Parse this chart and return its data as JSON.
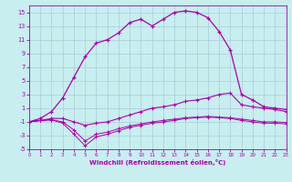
{
  "x": [
    0,
    1,
    2,
    3,
    4,
    5,
    6,
    7,
    8,
    9,
    10,
    11,
    12,
    13,
    14,
    15,
    16,
    17,
    18,
    19,
    20,
    21,
    22,
    23
  ],
  "line1": [
    -1,
    -0.5,
    0.5,
    2.5,
    5.5,
    8.5,
    10.5,
    11,
    12,
    13.5,
    14,
    13,
    14,
    15,
    15.2,
    15,
    14.2,
    12.2,
    9.5,
    3.0,
    2.2,
    1.2,
    1.0,
    0.8
  ],
  "line2": [
    -1,
    -0.8,
    -0.5,
    -0.5,
    -1.0,
    -1.5,
    -1.2,
    -1.0,
    -0.5,
    0.0,
    0.5,
    1.0,
    1.2,
    1.5,
    2.0,
    2.2,
    2.5,
    3.0,
    3.2,
    1.5,
    1.2,
    1.0,
    0.8,
    0.5
  ],
  "line3": [
    -1,
    -0.8,
    -0.7,
    -1.2,
    -2.8,
    -4.5,
    -3.2,
    -2.8,
    -2.3,
    -1.8,
    -1.5,
    -1.2,
    -1.0,
    -0.8,
    -0.5,
    -0.4,
    -0.3,
    -0.4,
    -0.5,
    -0.8,
    -1.0,
    -1.2,
    -1.2,
    -1.3
  ],
  "line4": [
    -1,
    -0.8,
    -0.7,
    -1.0,
    -2.2,
    -3.8,
    -2.8,
    -2.5,
    -2.0,
    -1.6,
    -1.3,
    -1.0,
    -0.8,
    -0.6,
    -0.4,
    -0.3,
    -0.2,
    -0.3,
    -0.4,
    -0.6,
    -0.8,
    -1.0,
    -1.0,
    -1.1
  ],
  "bg_color": "#c8eef0",
  "grid_color": "#aaccd8",
  "line_color": "#aa00aa",
  "xlabel": "Windchill (Refroidissement éolien,°C)",
  "xlim": [
    0,
    23
  ],
  "ylim": [
    -5,
    16
  ],
  "yticks": [
    -5,
    -3,
    -1,
    1,
    3,
    5,
    7,
    9,
    11,
    13,
    15
  ],
  "xticks": [
    0,
    1,
    2,
    3,
    4,
    5,
    6,
    7,
    8,
    9,
    10,
    11,
    12,
    13,
    14,
    15,
    16,
    17,
    18,
    19,
    20,
    21,
    22,
    23
  ]
}
